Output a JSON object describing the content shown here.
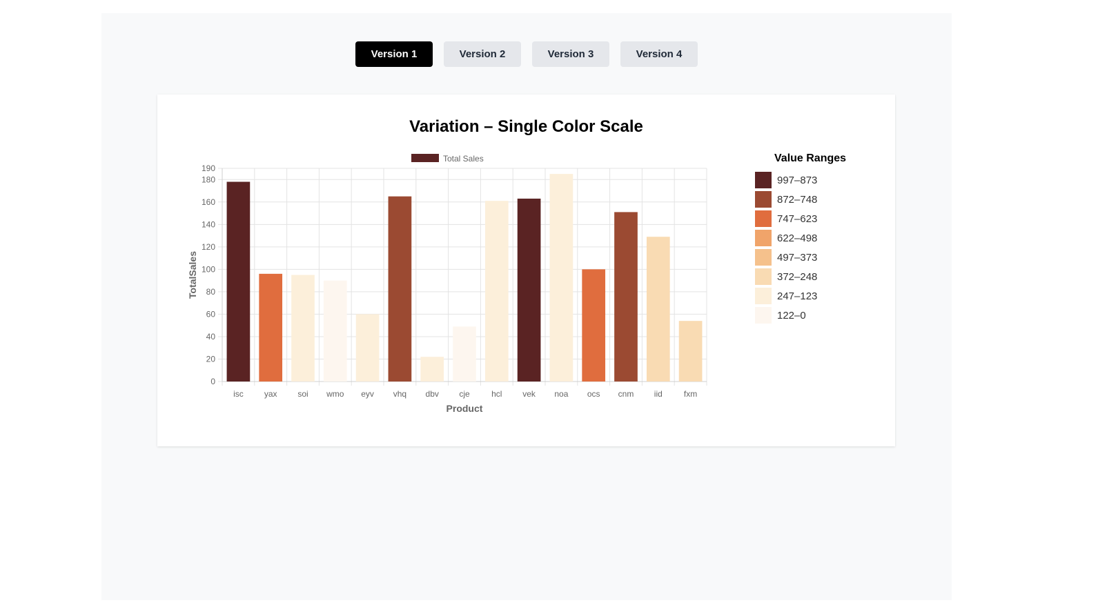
{
  "tabs": [
    {
      "label": "Version 1",
      "active": true
    },
    {
      "label": "Version 2",
      "active": false
    },
    {
      "label": "Version 3",
      "active": false
    },
    {
      "label": "Version 4",
      "active": false
    }
  ],
  "legend": {
    "title": "Value Ranges",
    "items": [
      {
        "label": "997–873",
        "color": "#5a2323"
      },
      {
        "label": "872–748",
        "color": "#9b4a32"
      },
      {
        "label": "747–623",
        "color": "#e06d3e"
      },
      {
        "label": "622–498",
        "color": "#f0a46a"
      },
      {
        "label": "497–373",
        "color": "#f5c18c"
      },
      {
        "label": "372–248",
        "color": "#f9dbb3"
      },
      {
        "label": "247–123",
        "color": "#fcefda"
      },
      {
        "label": "122–0",
        "color": "#fdf6ef"
      }
    ]
  },
  "chart_data": {
    "type": "bar",
    "title": "Variation – Single Color Scale",
    "xlabel": "Product",
    "ylabel": "TotalSales",
    "ylim": [
      0,
      190
    ],
    "yticks": [
      0,
      20,
      40,
      60,
      80,
      100,
      120,
      140,
      160,
      180,
      190
    ],
    "categories": [
      "isc",
      "yax",
      "soi",
      "wmo",
      "eyv",
      "vhq",
      "dbv",
      "cje",
      "hcl",
      "vek",
      "noa",
      "ocs",
      "cnm",
      "iid",
      "fxm"
    ],
    "series": [
      {
        "name": "Total Sales",
        "values": [
          178,
          96,
          95,
          90,
          60,
          165,
          22,
          49,
          161,
          163,
          185,
          100,
          151,
          129,
          54
        ],
        "colors": [
          "#5a2323",
          "#e06d3e",
          "#fcefda",
          "#fdf6ef",
          "#fcefda",
          "#9b4a32",
          "#fcefda",
          "#fdf6ef",
          "#fcefda",
          "#5a2323",
          "#fcefda",
          "#e06d3e",
          "#9b4a32",
          "#f9dbb3",
          "#f9dbb3"
        ]
      }
    ],
    "legend_position": "top",
    "grid": true
  }
}
